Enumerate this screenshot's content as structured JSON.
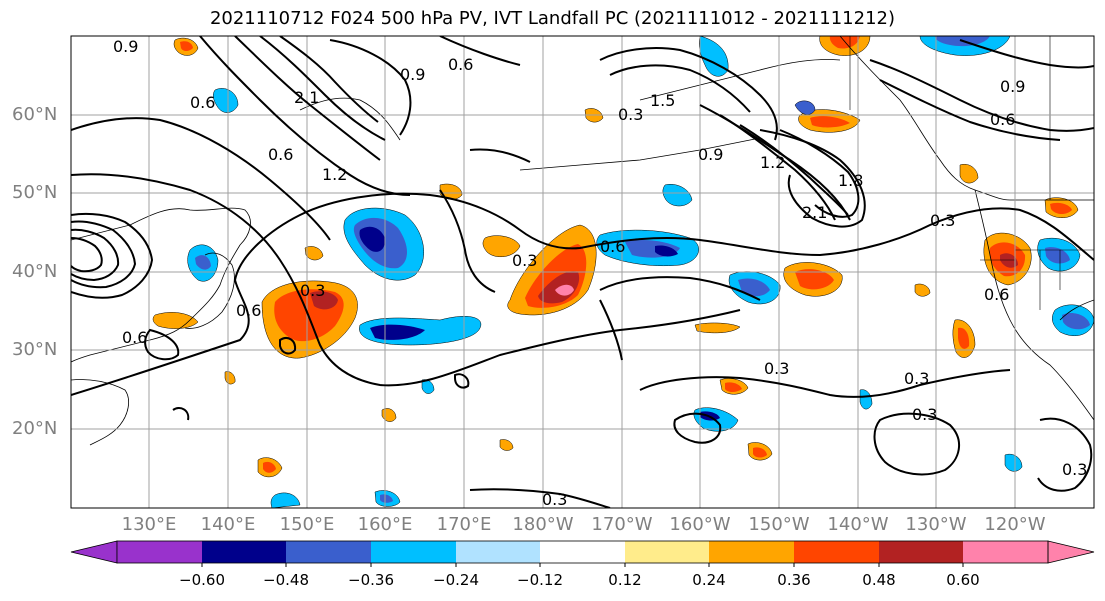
{
  "title": "2021110712 F024 500 hPa PV, IVT Landfall PC (2021111012 - 2021111212)",
  "lat_labels": [
    "60°N",
    "50°N",
    "40°N",
    "30°N",
    "20°N"
  ],
  "lon_labels": [
    "130°E",
    "140°E",
    "150°E",
    "160°E",
    "170°E",
    "180°W",
    "170°W",
    "160°W",
    "150°W",
    "140°W",
    "130°W",
    "120°W"
  ],
  "contour_labels": [
    "0.9",
    "0.6",
    "2.1",
    "0.9",
    "0.6",
    "1.5",
    "0.6",
    "1.2",
    "0.3",
    "0.9",
    "1.2",
    "1.8",
    "2.1",
    "0.3",
    "0.6",
    "0.9",
    "0.3",
    "0.3",
    "0.6",
    "0.6",
    "0.6",
    "0.3",
    "0.3",
    "0.3",
    "0.3",
    "0.3",
    "0.6"
  ],
  "colorbar": {
    "ticks": [
      "−0.60",
      "−0.48",
      "−0.36",
      "−0.24",
      "−0.12",
      "0.12",
      "0.24",
      "0.36",
      "0.48",
      "0.60"
    ],
    "colors": [
      "#9932cc",
      "#00008b",
      "#3a5fcd",
      "#00bfff",
      "#b0e2ff",
      "#ffffff",
      "#ffec8b",
      "#ffa500",
      "#ff4500",
      "#b22222",
      "#ff82ab"
    ]
  },
  "fill_colors": {
    "neg_1": "#b0e2ff",
    "neg_2": "#00bfff",
    "neg_3": "#3a5fcd",
    "neg_4": "#00008b",
    "pos_1": "#ffec8b",
    "pos_2": "#ffa500",
    "pos_3": "#ff4500",
    "pos_4": "#b22222",
    "pos_5": "#ff82ab"
  }
}
